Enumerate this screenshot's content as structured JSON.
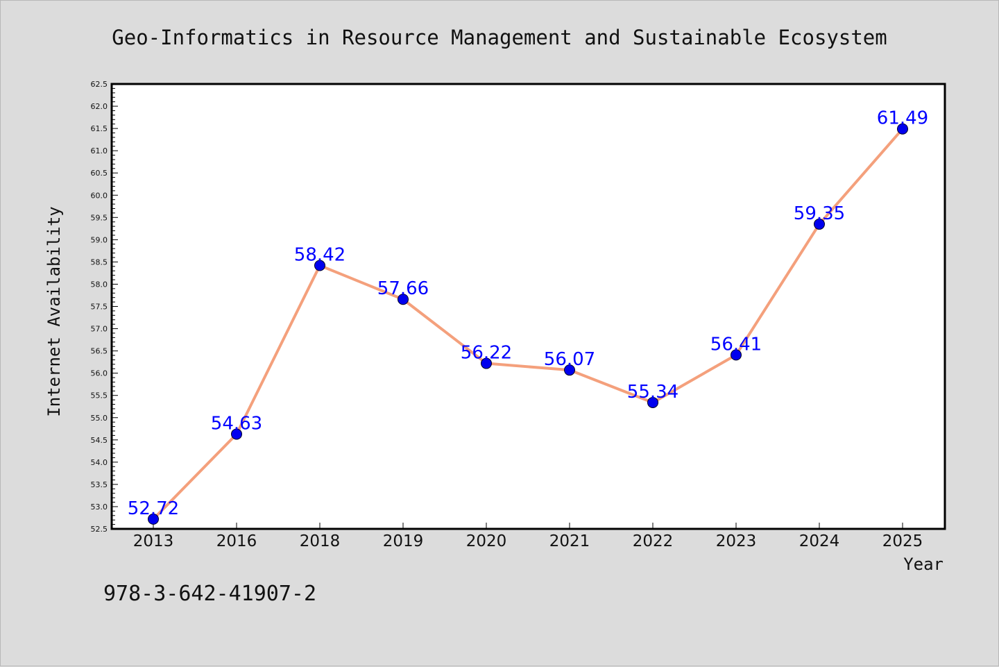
{
  "chart_data": {
    "type": "line",
    "title": "Geo-Informatics in Resource Management and Sustainable Ecosystem",
    "xlabel": "Year",
    "ylabel": "Internet Availability",
    "categories": [
      "2013",
      "2016",
      "2018",
      "2019",
      "2020",
      "2021",
      "2022",
      "2023",
      "2024",
      "2025"
    ],
    "values": [
      52.72,
      54.63,
      58.42,
      57.66,
      56.22,
      56.07,
      55.34,
      56.41,
      59.35,
      61.49
    ],
    "data_labels": [
      "52.72",
      "54.63",
      "58.42",
      "57.66",
      "56.22",
      "56.07",
      "55.34",
      "56.41",
      "59.35",
      "61.49"
    ],
    "ylim": [
      52.5,
      62.5
    ],
    "yticks": [
      "52.5",
      "53.0",
      "53.5",
      "54.0",
      "54.5",
      "55.0",
      "55.5",
      "56.0",
      "56.5",
      "57.0",
      "57.5",
      "58.0",
      "58.5",
      "59.0",
      "59.5",
      "60.0",
      "60.5",
      "61.0",
      "61.5",
      "62.0",
      "62.5"
    ],
    "grid": false,
    "line_color": "#f4a07c",
    "marker_color": "#0000ee",
    "label_color": "#0000ff"
  },
  "footer": {
    "isbn": "978-3-642-41907-2"
  }
}
